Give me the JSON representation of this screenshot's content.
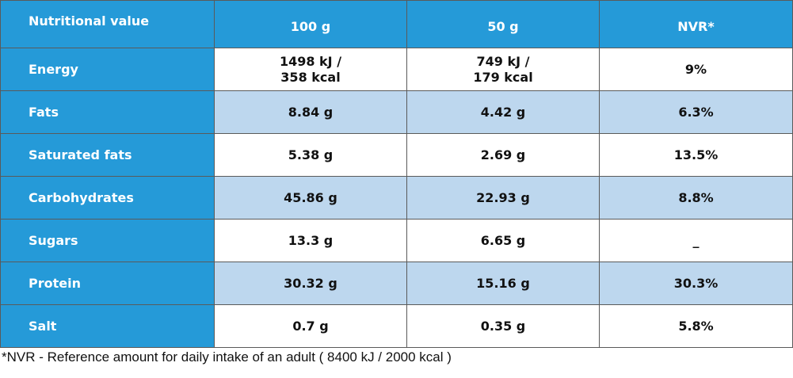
{
  "table": {
    "headers": [
      "Nutritional value",
      "100 g",
      "50 g",
      "NVR*"
    ],
    "rows": [
      {
        "label": "Energy",
        "per100_line1": "1498 kJ /",
        "per100_line2": "358 kcal",
        "per50_line1": "749 kJ /",
        "per50_line2": "179 kcal",
        "nvr": "9%"
      },
      {
        "label": "Fats",
        "per100": "8.84 g",
        "per50": "4.42 g",
        "nvr": "6.3%"
      },
      {
        "label": "Saturated fats",
        "per100": "5.38 g",
        "per50": "2.69 g",
        "nvr": "13.5%"
      },
      {
        "label": "Carbohydrates",
        "per100": "45.86 g",
        "per50": "22.93 g",
        "nvr": "8.8%"
      },
      {
        "label": "Sugars",
        "per100": "13.3 g",
        "per50": "6.65 g",
        "nvr": "_"
      },
      {
        "label": "Protein",
        "per100": "30.32 g",
        "per50": "15.16 g",
        "nvr": "30.3%"
      },
      {
        "label": "Salt",
        "per100": "0.7 g",
        "per50": "0.35 g",
        "nvr": "5.8%"
      }
    ]
  },
  "footnote": "*NVR - Reference amount for daily intake of an adult ( 8400 kJ / 2000 kcal )",
  "colors": {
    "header_blue": "#259ad8",
    "row_alt_light_blue": "#bdd7ee",
    "border_gray": "#5a5a5a"
  }
}
